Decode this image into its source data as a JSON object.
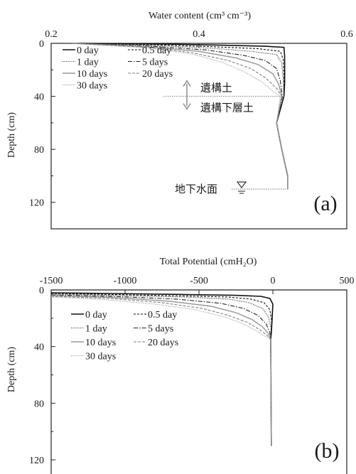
{
  "chart_data": [
    {
      "type": "line",
      "panel_label": "(a)",
      "xlabel": "Water content (cm³ cm⁻³)",
      "ylabel": "Depth (cm)",
      "xlim": [
        0.2,
        0.6
      ],
      "ylim": [
        0,
        140
      ],
      "y_inverted": true,
      "x_axis_position": "top",
      "x_ticks": [
        0.2,
        0.4,
        0.6
      ],
      "x_tick_labels": [
        "0.2",
        "0.4",
        "0.6"
      ],
      "y_ticks": [
        0,
        40,
        80,
        120
      ],
      "y_tick_labels": [
        "0",
        "40",
        "80",
        "120"
      ],
      "legend_placement": "top-left",
      "series": [
        {
          "name": "0 day",
          "color": "#111111",
          "dash": "",
          "width": 1.6,
          "points": [
            [
              0.228,
              0
            ],
            [
              0.36,
              0.6
            ],
            [
              0.43,
              1.4
            ],
            [
              0.49,
              2.2
            ],
            [
              0.515,
              3
            ],
            [
              0.516,
              10
            ],
            [
              0.516,
              20
            ],
            [
              0.516,
              30
            ],
            [
              0.515,
              40
            ],
            [
              0.505,
              60
            ],
            [
              0.512,
              80
            ],
            [
              0.52,
              100
            ],
            [
              0.52,
              110
            ]
          ]
        },
        {
          "name": "0.5 day",
          "color": "#111111",
          "dash": "3,2",
          "width": 1.1,
          "points": [
            [
              0.228,
              0
            ],
            [
              0.34,
              1
            ],
            [
              0.42,
              2.6
            ],
            [
              0.48,
              4
            ],
            [
              0.51,
              6
            ],
            [
              0.514,
              12
            ],
            [
              0.515,
              25
            ],
            [
              0.515,
              40
            ],
            [
              0.505,
              60
            ],
            [
              0.512,
              80
            ],
            [
              0.52,
              100
            ],
            [
              0.52,
              110
            ]
          ]
        },
        {
          "name": "1 day",
          "color": "#222222",
          "dash": "1,1.5",
          "width": 1.1,
          "points": [
            [
              0.228,
              0
            ],
            [
              0.34,
              1.6
            ],
            [
              0.42,
              3.8
            ],
            [
              0.47,
              6
            ],
            [
              0.505,
              8.5
            ],
            [
              0.512,
              15
            ],
            [
              0.514,
              28
            ],
            [
              0.515,
              40
            ],
            [
              0.505,
              60
            ],
            [
              0.512,
              80
            ],
            [
              0.52,
              100
            ],
            [
              0.52,
              110
            ]
          ]
        },
        {
          "name": "5 days",
          "color": "#222222",
          "dash": "6,2,1.5,2",
          "width": 1.1,
          "points": [
            [
              0.228,
              0
            ],
            [
              0.33,
              2
            ],
            [
              0.41,
              5
            ],
            [
              0.46,
              9
            ],
            [
              0.49,
              13
            ],
            [
              0.505,
              19
            ],
            [
              0.51,
              28
            ],
            [
              0.513,
              40
            ],
            [
              0.505,
              60
            ],
            [
              0.512,
              80
            ],
            [
              0.52,
              100
            ],
            [
              0.52,
              110
            ]
          ]
        },
        {
          "name": "10 days",
          "color": "#9a9a9a",
          "dash": "",
          "width": 1.5,
          "points": [
            [
              0.228,
              0
            ],
            [
              0.33,
              2.6
            ],
            [
              0.4,
              6
            ],
            [
              0.45,
              11
            ],
            [
              0.48,
              16
            ],
            [
              0.5,
              23
            ],
            [
              0.508,
              31
            ],
            [
              0.512,
              40
            ],
            [
              0.505,
              60
            ],
            [
              0.512,
              80
            ],
            [
              0.52,
              100
            ],
            [
              0.52,
              110
            ]
          ]
        },
        {
          "name": "20 days",
          "color": "#808080",
          "dash": "4,2",
          "width": 1.1,
          "points": [
            [
              0.228,
              0
            ],
            [
              0.33,
              3
            ],
            [
              0.39,
              7
            ],
            [
              0.44,
              13
            ],
            [
              0.47,
              19
            ],
            [
              0.49,
              26
            ],
            [
              0.505,
              34
            ],
            [
              0.512,
              40
            ],
            [
              0.505,
              60
            ],
            [
              0.512,
              80
            ],
            [
              0.52,
              100
            ],
            [
              0.52,
              110
            ]
          ]
        },
        {
          "name": "30 days",
          "color": "#9a9a9a",
          "dash": "1,1.5",
          "width": 1.2,
          "points": [
            [
              0.228,
              0
            ],
            [
              0.33,
              3.5
            ],
            [
              0.39,
              8
            ],
            [
              0.43,
              14
            ],
            [
              0.46,
              21
            ],
            [
              0.485,
              29
            ],
            [
              0.5,
              36
            ],
            [
              0.51,
              40
            ],
            [
              0.505,
              60
            ],
            [
              0.512,
              80
            ],
            [
              0.52,
              100
            ],
            [
              0.52,
              110
            ]
          ]
        }
      ],
      "annotations": {
        "upper_layer": "遺構土",
        "lower_layer": "遺構下層土",
        "layer_boundary_depth": 40,
        "groundwater": "地下水面",
        "groundwater_depth": 110
      }
    },
    {
      "type": "line",
      "panel_label": "(b)",
      "xlabel": "Total Potential (cmH₂O)",
      "ylabel": "Depth (cm)",
      "xlim": [
        -1500,
        500
      ],
      "ylim": [
        0,
        130
      ],
      "y_inverted": true,
      "x_axis_position": "top",
      "x_ticks": [
        -1500,
        -1000,
        -500,
        0,
        500
      ],
      "x_tick_labels": [
        "-1500",
        "-1000",
        "-500",
        "0",
        "500"
      ],
      "y_ticks": [
        0,
        40,
        80,
        120
      ],
      "y_tick_labels": [
        "0",
        "40",
        "80",
        "120"
      ],
      "legend_placement": "left",
      "series": [
        {
          "name": "0 day",
          "color": "#111111",
          "dash": "",
          "width": 1.6,
          "points": [
            [
              -1500,
              2
            ],
            [
              -1100,
              2.5
            ],
            [
              -600,
              3.2
            ],
            [
              -250,
              3.8
            ],
            [
              -80,
              4.5
            ],
            [
              -20,
              6
            ],
            [
              0,
              10
            ],
            [
              -5,
              20
            ],
            [
              -10,
              30
            ],
            [
              -15,
              35
            ],
            [
              -13,
              60
            ],
            [
              -12,
              85
            ],
            [
              -10,
              110
            ]
          ]
        },
        {
          "name": "0.5 day",
          "color": "#111111",
          "dash": "3,2",
          "width": 1.1,
          "points": [
            [
              -1500,
              2.5
            ],
            [
              -1100,
              3.2
            ],
            [
              -600,
              4.2
            ],
            [
              -300,
              5
            ],
            [
              -150,
              6.5
            ],
            [
              -60,
              9
            ],
            [
              -20,
              14
            ],
            [
              -8,
              22
            ],
            [
              -12,
              30
            ],
            [
              -15,
              35
            ],
            [
              -13,
              60
            ],
            [
              -12,
              85
            ],
            [
              -10,
              110
            ]
          ]
        },
        {
          "name": "1 day",
          "color": "#222222",
          "dash": "1,1.5",
          "width": 1.1,
          "points": [
            [
              -1500,
              3
            ],
            [
              -1100,
              3.8
            ],
            [
              -600,
              5
            ],
            [
              -300,
              6.5
            ],
            [
              -160,
              9
            ],
            [
              -70,
              13
            ],
            [
              -30,
              19
            ],
            [
              -12,
              27
            ],
            [
              -14,
              33
            ],
            [
              -15,
              35
            ],
            [
              -13,
              60
            ],
            [
              -12,
              85
            ],
            [
              -10,
              110
            ]
          ]
        },
        {
          "name": "5 days",
          "color": "#222222",
          "dash": "6,2,1.5,2",
          "width": 1.1,
          "points": [
            [
              -1500,
              3.5
            ],
            [
              -1100,
              4.5
            ],
            [
              -650,
              6.5
            ],
            [
              -350,
              9.5
            ],
            [
              -200,
              13
            ],
            [
              -100,
              18
            ],
            [
              -45,
              24
            ],
            [
              -20,
              30
            ],
            [
              -15,
              35
            ],
            [
              -13,
              60
            ],
            [
              -12,
              85
            ],
            [
              -10,
              110
            ]
          ]
        },
        {
          "name": "10 days",
          "color": "#9a9a9a",
          "dash": "",
          "width": 1.5,
          "points": [
            [
              -1500,
              4
            ],
            [
              -1100,
              5.2
            ],
            [
              -700,
              8
            ],
            [
              -420,
              11.5
            ],
            [
              -250,
              16
            ],
            [
              -140,
              21
            ],
            [
              -70,
              26
            ],
            [
              -30,
              31
            ],
            [
              -15,
              35
            ],
            [
              -13,
              60
            ],
            [
              -12,
              85
            ],
            [
              -10,
              110
            ]
          ]
        },
        {
          "name": "20 days",
          "color": "#808080",
          "dash": "4,2",
          "width": 1.1,
          "points": [
            [
              -1500,
              4.5
            ],
            [
              -1100,
              6
            ],
            [
              -750,
              9
            ],
            [
              -480,
              13
            ],
            [
              -300,
              18
            ],
            [
              -170,
              23
            ],
            [
              -90,
              28
            ],
            [
              -40,
              32
            ],
            [
              -15,
              35
            ],
            [
              -13,
              60
            ],
            [
              -12,
              85
            ],
            [
              -10,
              110
            ]
          ]
        },
        {
          "name": "30 days",
          "color": "#9a9a9a",
          "dash": "1,1.5",
          "width": 1.2,
          "points": [
            [
              -1500,
              5
            ],
            [
              -1150,
              6.8
            ],
            [
              -800,
              10
            ],
            [
              -520,
              14
            ],
            [
              -330,
              19
            ],
            [
              -200,
              24
            ],
            [
              -110,
              29
            ],
            [
              -50,
              33
            ],
            [
              -15,
              35
            ],
            [
              -13,
              60
            ],
            [
              -12,
              85
            ],
            [
              -10,
              110
            ]
          ]
        }
      ]
    }
  ]
}
